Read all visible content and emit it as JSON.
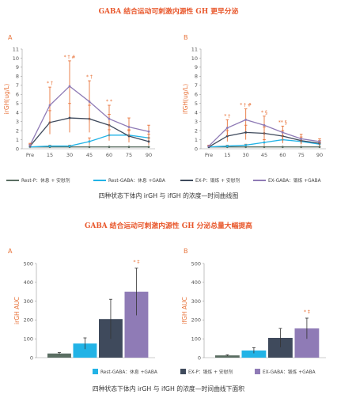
{
  "colors": {
    "accent": "#e8562a",
    "orange": "#e8733a",
    "rest_p": "#5a6e62",
    "rest_gaba": "#22b3e6",
    "ex_p": "#3f4a5c",
    "ex_gaba": "#8f7bb6"
  },
  "section1_title": "GABA 结合运动可刺激内源性 GH 更早分泌",
  "section2_title": "GABA 结合运动可刺激内源性 GH 分泌总量大幅提高",
  "caption1": "四种状态下体内 irGH 与 ifGH 的浓度—时间曲线图",
  "caption2": "四种状态下体内 irGH 与 ifGH 的浓度—时间曲线下面积",
  "legend": {
    "rest_p": "Rest-P：休息 + 安慰剂",
    "rest_gaba": "Rest-GABA：休息 +GABA",
    "ex_p": "EX-P：锻炼 + 安慰剂",
    "ex_gaba": "EX-GABA：锻炼 +GABA"
  },
  "chart_data": [
    {
      "type": "line",
      "panel": "A",
      "ylabel": "irGH(ug/L)",
      "categories": [
        "Pre",
        "15",
        "30",
        "45",
        "60",
        "75",
        "90"
      ],
      "ylim": [
        0,
        11
      ],
      "yticks": [
        0,
        1,
        2,
        3,
        4,
        5,
        6,
        7,
        8,
        9,
        10,
        11
      ],
      "series": [
        {
          "name": "Rest-P",
          "key": "rest_p",
          "values": [
            0.2,
            0.2,
            0.2,
            0.2,
            0.2,
            0.2,
            0.2
          ],
          "err": [
            0,
            0,
            0,
            0,
            0,
            0,
            0
          ]
        },
        {
          "name": "Rest-GABA",
          "key": "rest_gaba",
          "values": [
            0.2,
            0.3,
            0.3,
            0.8,
            1.5,
            1.5,
            1.2
          ],
          "err": [
            0,
            0.1,
            0.1,
            0.4,
            0.6,
            0.5,
            0.4
          ]
        },
        {
          "name": "EX-P",
          "key": "ex_p",
          "values": [
            0.3,
            2.9,
            3.4,
            3.3,
            2.6,
            1.4,
            0.8
          ],
          "err": [
            0.2,
            1.3,
            1.6,
            1.5,
            1.2,
            0.7,
            0.4
          ]
        },
        {
          "name": "EX-GABA",
          "key": "ex_gaba",
          "values": [
            0.4,
            4.8,
            6.9,
            5.2,
            3.3,
            2.4,
            1.9
          ],
          "err": [
            0.2,
            2.0,
            2.8,
            2.3,
            1.5,
            1.0,
            0.7
          ]
        }
      ],
      "annotations": [
        {
          "x": "15",
          "text": "* †"
        },
        {
          "x": "30",
          "text": "* † #"
        },
        {
          "x": "45",
          "text": "* †"
        },
        {
          "x": "60",
          "text": "* *"
        }
      ]
    },
    {
      "type": "line",
      "panel": "B",
      "ylabel": "ifGH(ug/L)",
      "categories": [
        "Pre",
        "15",
        "30",
        "45",
        "60",
        "75",
        "90"
      ],
      "ylim": [
        0,
        11
      ],
      "yticks": [
        0,
        1,
        2,
        3,
        4,
        5,
        6,
        7,
        8,
        9,
        10,
        11
      ],
      "series": [
        {
          "name": "Rest-P",
          "key": "rest_p",
          "values": [
            0.2,
            0.2,
            0.2,
            0.2,
            0.2,
            0.2,
            0.2
          ],
          "err": [
            0,
            0,
            0,
            0,
            0,
            0,
            0
          ]
        },
        {
          "name": "Rest-GABA",
          "key": "rest_gaba",
          "values": [
            0.2,
            0.3,
            0.4,
            0.7,
            1.0,
            0.8,
            0.5
          ],
          "err": [
            0,
            0.1,
            0.1,
            0.3,
            0.4,
            0.3,
            0.2
          ]
        },
        {
          "name": "EX-P",
          "key": "ex_p",
          "values": [
            0.2,
            1.4,
            1.8,
            1.7,
            1.4,
            0.9,
            0.6
          ],
          "err": [
            0.1,
            0.6,
            0.8,
            0.7,
            0.6,
            0.4,
            0.3
          ]
        },
        {
          "name": "EX-GABA",
          "key": "ex_gaba",
          "values": [
            0.3,
            2.3,
            3.2,
            2.6,
            1.8,
            1.1,
            0.8
          ],
          "err": [
            0.1,
            0.9,
            1.2,
            1.0,
            0.7,
            0.5,
            0.3
          ]
        }
      ],
      "annotations": [
        {
          "x": "15",
          "text": "* †"
        },
        {
          "x": "30",
          "text": "* † #"
        },
        {
          "x": "45",
          "text": "* §"
        },
        {
          "x": "60",
          "text": "** §"
        }
      ]
    },
    {
      "type": "bar",
      "panel": "A",
      "ylabel": "irGH AUC",
      "ylim": [
        0,
        500
      ],
      "yticks": [
        0,
        100,
        200,
        300,
        400,
        500
      ],
      "categories": [
        "Rest-P",
        "Rest-GABA",
        "EX-P",
        "EX-GABA"
      ],
      "values": [
        22,
        75,
        205,
        350
      ],
      "err": [
        5,
        30,
        105,
        125
      ],
      "annotation": "* ‡"
    },
    {
      "type": "bar",
      "panel": "B",
      "ylabel": "ifGH AUC",
      "ylim": [
        0,
        500
      ],
      "yticks": [
        0,
        100,
        200,
        300,
        400,
        500
      ],
      "categories": [
        "Rest-P",
        "Rest-GABA",
        "EX-P",
        "EX-GABA"
      ],
      "values": [
        12,
        38,
        105,
        155
      ],
      "err": [
        3,
        15,
        50,
        55
      ],
      "annotation": "* ‡"
    }
  ]
}
